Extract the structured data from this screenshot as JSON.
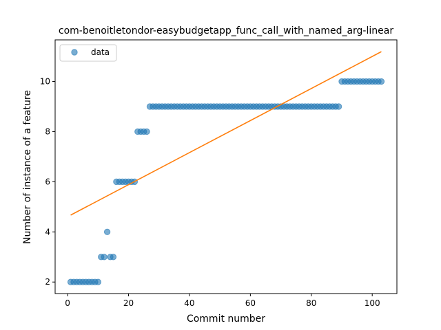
{
  "chart_data": {
    "type": "scatter",
    "title": "com-benoitletondor-easybudgetapp_func_call_with_named_arg-linear",
    "xlabel": "Commit number",
    "ylabel": "Number of instance of a feature",
    "xlim": [
      -4.1,
      108.1
    ],
    "ylim": [
      1.54,
      11.66
    ],
    "xticks": [
      0,
      20,
      40,
      60,
      80,
      100
    ],
    "yticks": [
      2,
      4,
      6,
      8,
      10
    ],
    "grid": false,
    "legend_position": "top-left",
    "series": [
      {
        "name": "data",
        "kind": "scatter",
        "color": "#1f77b4",
        "x": [
          1,
          2,
          3,
          4,
          5,
          6,
          7,
          8,
          9,
          10,
          11,
          12,
          13,
          14,
          15,
          16,
          17,
          18,
          19,
          20,
          21,
          22,
          23,
          24,
          25,
          26,
          27,
          28,
          29,
          30,
          31,
          32,
          33,
          34,
          35,
          36,
          37,
          38,
          39,
          40,
          41,
          42,
          43,
          44,
          45,
          46,
          47,
          48,
          49,
          50,
          51,
          52,
          53,
          54,
          55,
          56,
          57,
          58,
          59,
          60,
          61,
          62,
          63,
          64,
          65,
          66,
          67,
          68,
          69,
          70,
          71,
          72,
          73,
          74,
          75,
          76,
          77,
          78,
          79,
          80,
          81,
          82,
          83,
          84,
          85,
          86,
          87,
          88,
          89,
          90,
          91,
          92,
          93,
          94,
          95,
          96,
          97,
          98,
          99,
          100,
          101,
          102,
          103
        ],
        "y": [
          2,
          2,
          2,
          2,
          2,
          2,
          2,
          2,
          2,
          2,
          3,
          3,
          4,
          3,
          3,
          6,
          6,
          6,
          6,
          6,
          6,
          6,
          8,
          8,
          8,
          8,
          9,
          9,
          9,
          9,
          9,
          9,
          9,
          9,
          9,
          9,
          9,
          9,
          9,
          9,
          9,
          9,
          9,
          9,
          9,
          9,
          9,
          9,
          9,
          9,
          9,
          9,
          9,
          9,
          9,
          9,
          9,
          9,
          9,
          9,
          9,
          9,
          9,
          9,
          9,
          9,
          9,
          9,
          9,
          9,
          9,
          9,
          9,
          9,
          9,
          9,
          9,
          9,
          9,
          9,
          9,
          9,
          9,
          9,
          9,
          9,
          9,
          9,
          9,
          10,
          10,
          10,
          10,
          10,
          10,
          10,
          10,
          10,
          10,
          10,
          10,
          10,
          10
        ]
      },
      {
        "kind": "line",
        "color": "#ff7f0e",
        "x": [
          1,
          103
        ],
        "y": [
          4.67,
          11.19
        ]
      }
    ]
  }
}
